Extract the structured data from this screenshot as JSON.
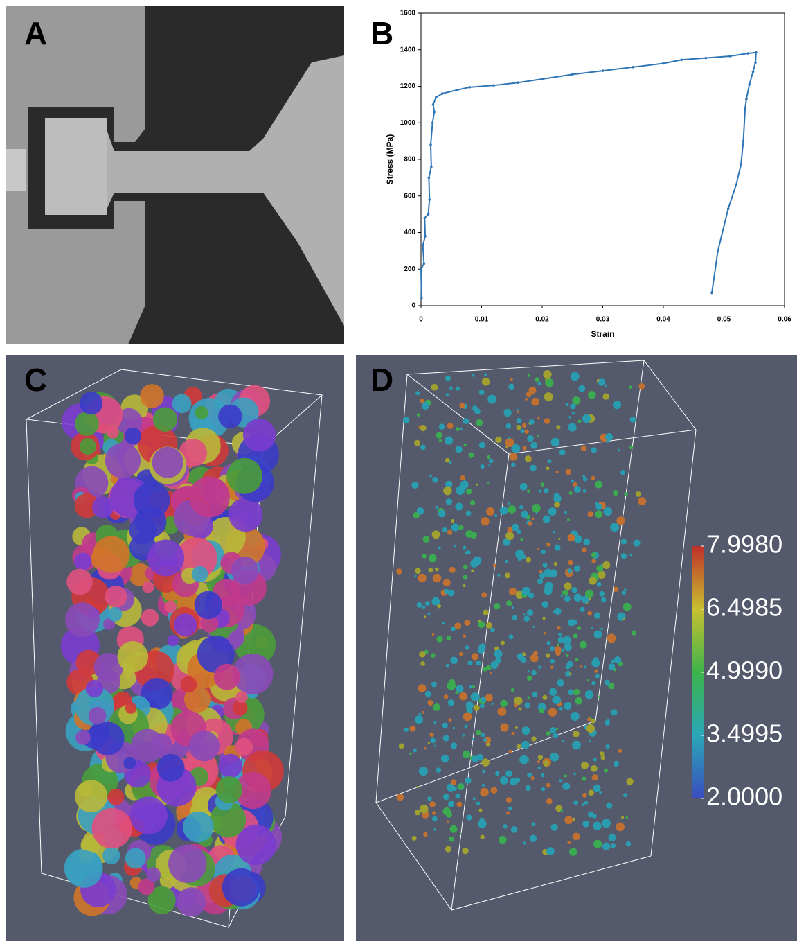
{
  "panel_labels": [
    "A",
    "B",
    "C",
    "D"
  ],
  "chart_data": {
    "type": "line",
    "xlabel": "Strain",
    "ylabel": "Stress (MPa)",
    "color": "#2e75b6",
    "x": [
      0.0001,
      0.0,
      0.0005,
      0.0003,
      0.0007,
      0.0006,
      0.0012,
      0.0014,
      0.0013,
      0.0017,
      0.0016,
      0.0019,
      0.0022,
      0.002,
      0.0025,
      0.0035,
      0.006,
      0.008,
      0.012,
      0.016,
      0.02,
      0.025,
      0.03,
      0.035,
      0.04,
      0.043,
      0.047,
      0.051,
      0.054,
      0.0553,
      0.0552,
      0.0548,
      0.0542,
      0.0537,
      0.0535,
      0.0532,
      0.0528,
      0.052,
      0.0507,
      0.049,
      0.048
    ],
    "values": [
      40,
      200,
      230,
      330,
      380,
      480,
      500,
      580,
      700,
      760,
      880,
      1000,
      1060,
      1100,
      1140,
      1160,
      1180,
      1195,
      1205,
      1220,
      1240,
      1265,
      1285,
      1305,
      1325,
      1345,
      1355,
      1365,
      1380,
      1385,
      1330,
      1280,
      1210,
      1130,
      1080,
      900,
      770,
      660,
      530,
      300,
      70
    ],
    "xlim": [
      0,
      0.06
    ],
    "xticks": [
      0,
      0.01,
      0.02,
      0.03,
      0.04,
      0.05,
      0.06
    ],
    "ylim": [
      0,
      1600
    ],
    "yticks": [
      0,
      200,
      400,
      600,
      800,
      1000,
      1200,
      1400,
      1600
    ]
  },
  "colorbar": {
    "range": [
      2,
      7.998
    ],
    "ticks": [
      {
        "value": 7.998,
        "label": "7.9980"
      },
      {
        "value": 6.4985,
        "label": "6.4985"
      },
      {
        "value": 4.999,
        "label": "4.9990"
      },
      {
        "value": 3.4995,
        "label": "3.4995"
      },
      {
        "value": 2,
        "label": "2.0000"
      }
    ]
  }
}
